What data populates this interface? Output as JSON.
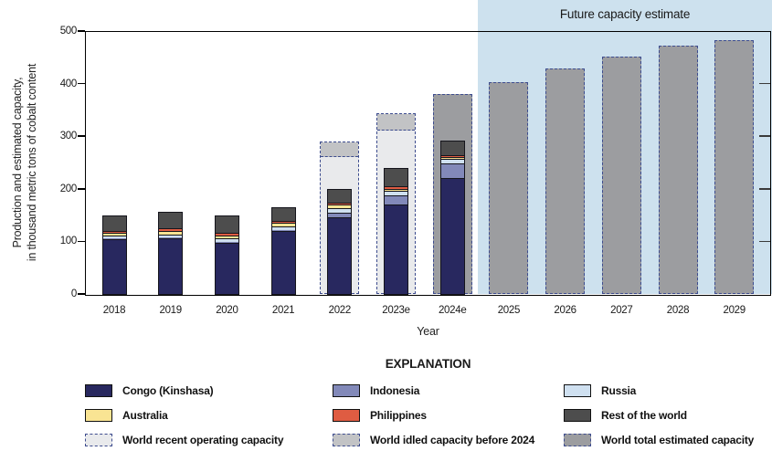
{
  "header": {
    "future_region_label": "Future capacity estimate"
  },
  "chart_data": {
    "type": "bar",
    "stacked": true,
    "grid": false,
    "legend_position": "bottom",
    "xlabel": "Year",
    "ylabel_lines": [
      "Production and estimated capacity,",
      "in thousand metric tons of cobalt content"
    ],
    "units": "thousand metric tons of cobalt content",
    "ylim": [
      0,
      500
    ],
    "yticks": [
      0,
      100,
      200,
      300,
      400,
      500
    ],
    "right_ticks": [
      100,
      200,
      300,
      400
    ],
    "categories": [
      "2018",
      "2019",
      "2020",
      "2021",
      "2022",
      "2023e",
      "2024e",
      "2025",
      "2026",
      "2027",
      "2028",
      "2029"
    ],
    "series": [
      {
        "name": "Congo (Kinshasa)",
        "color": "#28285f",
        "values": [
          104,
          106,
          98,
          119,
          145,
          170,
          220,
          null,
          null,
          null,
          null,
          null
        ]
      },
      {
        "name": "Indonesia",
        "color": "#8289b9",
        "values": [
          1,
          1.1,
          1.1,
          2.7,
          9.6,
          17,
          28,
          null,
          null,
          null,
          null,
          null
        ]
      },
      {
        "name": "Russia",
        "color": "#cfe0f0",
        "values": [
          6.1,
          6.3,
          6.3,
          7.5,
          8.9,
          8.8,
          8.7,
          null,
          null,
          null,
          null,
          null
        ]
      },
      {
        "name": "Australia",
        "color": "#f9e493",
        "values": [
          4.7,
          5.7,
          5.6,
          5.6,
          5.9,
          4.6,
          3.6,
          null,
          null,
          null,
          null,
          null
        ]
      },
      {
        "name": "Philippines",
        "color": "#df5c42",
        "values": [
          4.6,
          5.1,
          4.5,
          3.8,
          3.8,
          3.9,
          3.8,
          null,
          null,
          null,
          null,
          null
        ]
      },
      {
        "name": "Rest of the world",
        "color": "#4d4d4d",
        "values": [
          28,
          30,
          31.5,
          24.4,
          24.8,
          32.7,
          26,
          null,
          null,
          null,
          null,
          null
        ]
      }
    ],
    "capacity_overlays": [
      {
        "name": "World recent operating capacity",
        "key": "recent",
        "color": "#e9eaec",
        "values": [
          null,
          null,
          null,
          null,
          263,
          312,
          null,
          null,
          null,
          null,
          null,
          null
        ]
      },
      {
        "name": "World idled capacity before 2024",
        "key": "idled",
        "color": "#c2c3c5",
        "values_top": [
          null,
          null,
          null,
          null,
          290,
          344,
          null,
          null,
          null,
          null,
          null,
          null
        ]
      },
      {
        "name": "World total estimated capacity",
        "key": "total",
        "color": "#9c9da0",
        "values": [
          null,
          null,
          null,
          null,
          null,
          null,
          380,
          403,
          428,
          452,
          472,
          483
        ]
      }
    ],
    "future_region": {
      "label": "Future capacity estimate",
      "start_category": "2025",
      "end_category": "2029",
      "color": "#cde1ee"
    },
    "colors": {
      "axis": "#000000",
      "bar_outline": "#15151c",
      "dashed_border": "#3d4c8e"
    }
  },
  "legend": {
    "title": "EXPLANATION",
    "items": [
      {
        "label": "Congo (Kinshasa)",
        "color": "#28285f",
        "dashed": false
      },
      {
        "label": "Indonesia",
        "color": "#8289b9",
        "dashed": false
      },
      {
        "label": "Russia",
        "color": "#cfe0f0",
        "dashed": false
      },
      {
        "label": "Australia",
        "color": "#f9e493",
        "dashed": false
      },
      {
        "label": "Philippines",
        "color": "#df5c42",
        "dashed": false
      },
      {
        "label": "Rest of the world",
        "color": "#4d4d4d",
        "dashed": false
      },
      {
        "label": "World recent operating capacity",
        "color": "#e9eaec",
        "dashed": true
      },
      {
        "label": "World idled capacity before 2024",
        "color": "#c2c3c5",
        "dashed": true
      },
      {
        "label": "World total estimated capacity",
        "color": "#9c9da0",
        "dashed": true
      }
    ]
  }
}
